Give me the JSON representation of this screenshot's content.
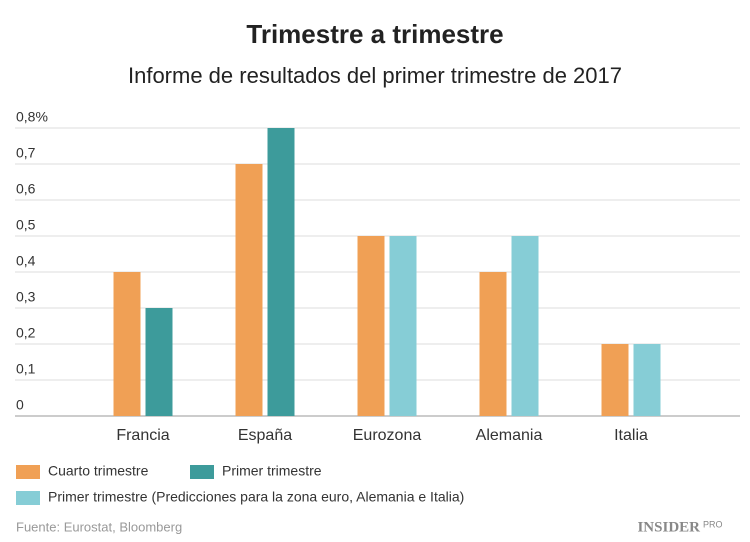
{
  "chart_data": {
    "type": "bar",
    "title": "Trimestre a trimestre",
    "subtitle": "Informe de resultados del primer trimestre de 2017",
    "categories": [
      "Francia",
      "España",
      "Eurozona",
      "Alemania",
      "Italia"
    ],
    "series": [
      {
        "name": "Cuarto trimestre",
        "color": "#f0a055",
        "values": [
          0.4,
          0.7,
          0.5,
          0.4,
          0.2
        ]
      },
      {
        "name": "Primer trimestre",
        "color": "#3d9b9b",
        "values": [
          0.3,
          0.8,
          null,
          null,
          null
        ]
      },
      {
        "name": "Primer trimestre (Predicciones para la zona euro, Alemania e Italia)",
        "color": "#86cdd6",
        "values": [
          null,
          null,
          0.5,
          0.5,
          0.2
        ]
      }
    ],
    "ylim": [
      0,
      0.8
    ],
    "yticks": [
      0,
      {
        "value": 0.1,
        "label": "0,1"
      },
      {
        "value": 0.2,
        "label": "0,2"
      },
      {
        "value": 0.3,
        "label": "0,3"
      },
      {
        "value": 0.4,
        "label": "0,4"
      },
      {
        "value": 0.5,
        "label": "0,5"
      },
      {
        "value": 0.6,
        "label": "0,6"
      },
      {
        "value": 0.7,
        "label": "0,7"
      },
      {
        "value": 0.8,
        "label": "0,8%"
      }
    ],
    "grid": true,
    "source": "Fuente: Eurostat, Bloomberg",
    "logo": "INSIDER",
    "logo_sub": "PRO"
  }
}
